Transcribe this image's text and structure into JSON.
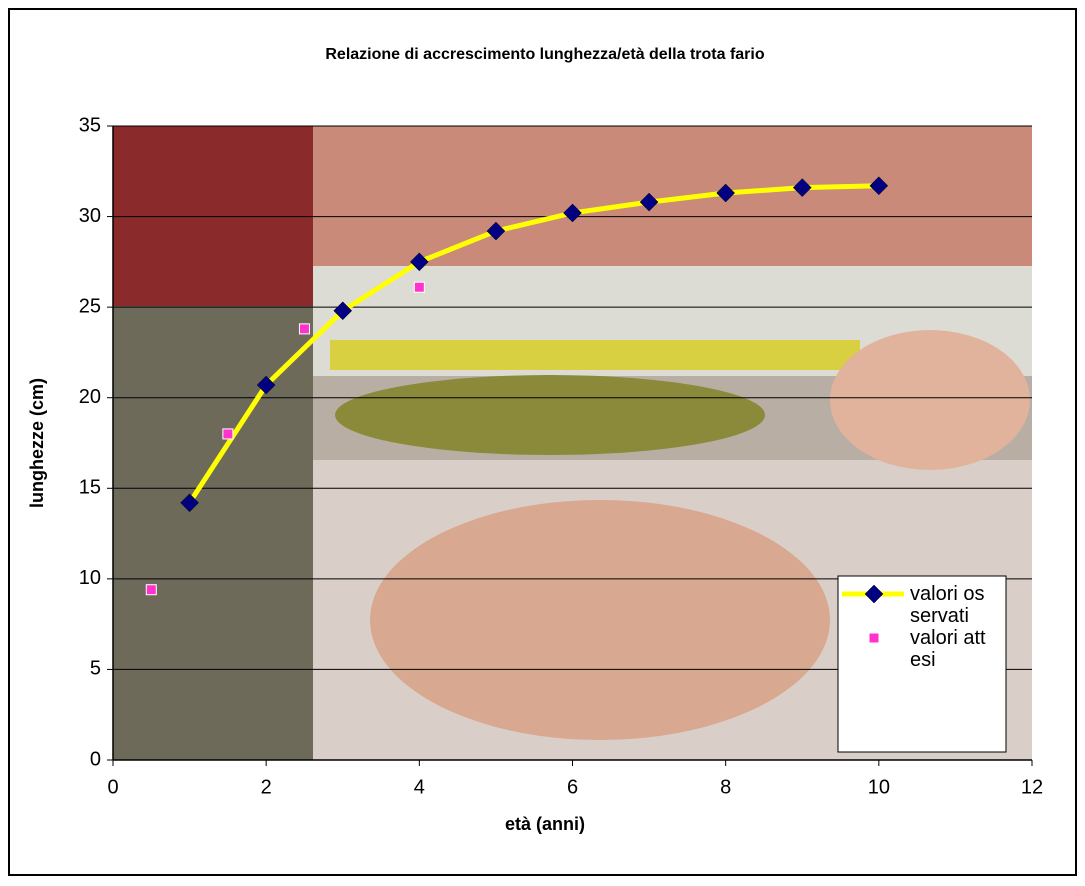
{
  "chart_data": {
    "type": "scatter",
    "title": "Relazione di accrescimento lunghezza/età della trota fario",
    "xlabel": "età (anni)",
    "ylabel": "lunghezze (cm)",
    "xlim": [
      0,
      12
    ],
    "xticks": [
      0,
      2,
      4,
      6,
      8,
      10,
      12
    ],
    "ylim": [
      0,
      35
    ],
    "yticks": [
      0,
      5,
      10,
      15,
      20,
      25,
      30,
      35
    ],
    "grid": true,
    "legend": "lower right",
    "series": [
      {
        "name": "valori osservati",
        "color": "#ffff00",
        "marker_color": "#000080",
        "line": true,
        "marker": "diamond",
        "x": [
          1,
          2,
          3,
          4,
          5,
          6,
          7,
          8,
          9,
          10
        ],
        "values": [
          14.2,
          20.7,
          24.8,
          27.5,
          29.2,
          30.2,
          30.8,
          31.3,
          31.6,
          31.7
        ]
      },
      {
        "name": "valori attesi",
        "color": "#ff33cc",
        "marker_color": "#ff33cc",
        "line": false,
        "marker": "square",
        "x": [
          0.5,
          1.5,
          2.5,
          4
        ],
        "values": [
          9.4,
          18,
          23.8,
          26.1
        ]
      }
    ]
  }
}
